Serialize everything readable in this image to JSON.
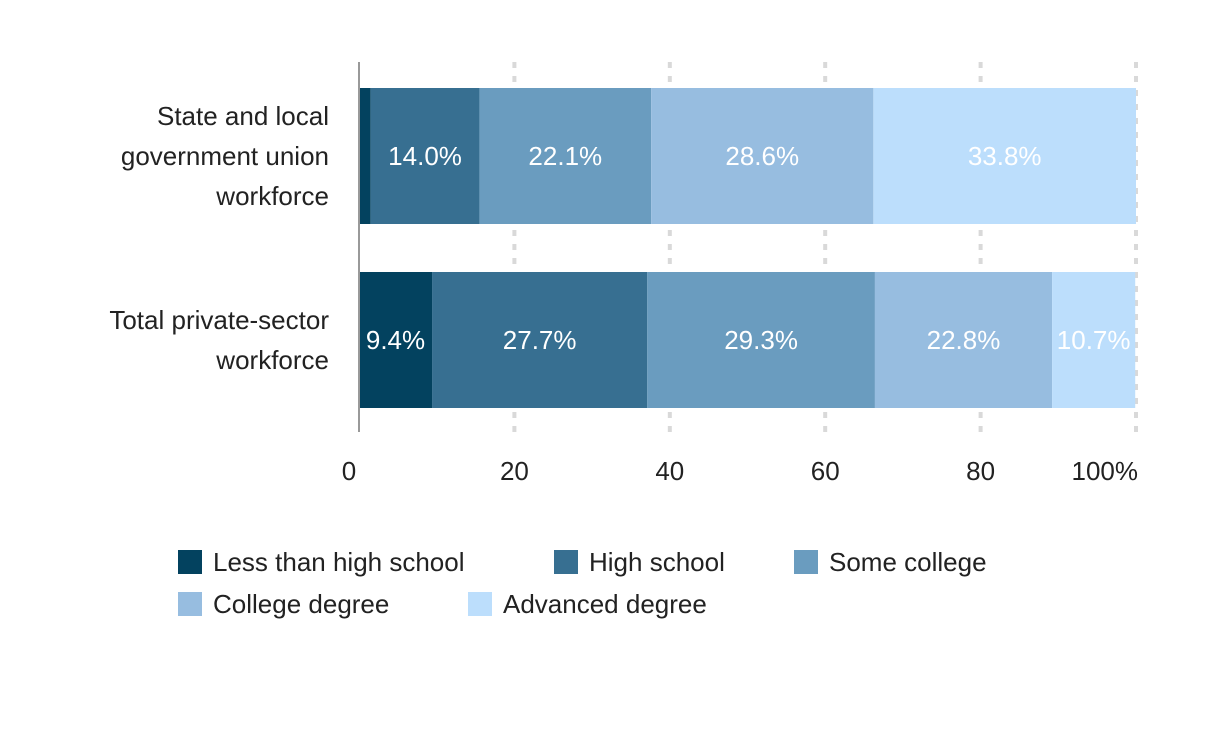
{
  "chart_data": {
    "type": "bar",
    "orientation": "horizontal",
    "stacked": true,
    "categories": [
      "State and local government union workforce",
      "Total private-sector workforce"
    ],
    "category_label_lines": [
      [
        "State and local",
        "government union",
        "workforce"
      ],
      [
        "Total private-sector",
        "workforce"
      ]
    ],
    "series": [
      {
        "name": "Less than high school",
        "values": [
          1.5,
          9.4
        ],
        "labels": [
          "",
          "9.4%"
        ],
        "color": "#03425f"
      },
      {
        "name": "High school",
        "values": [
          14.0,
          27.7
        ],
        "labels": [
          "14.0%",
          "27.7%"
        ],
        "color": "#376f91"
      },
      {
        "name": "Some college",
        "values": [
          22.1,
          29.3
        ],
        "labels": [
          "22.1%",
          "29.3%"
        ],
        "color": "#6a9cbf"
      },
      {
        "name": "College degree",
        "values": [
          28.6,
          22.8
        ],
        "labels": [
          "28.6%",
          "22.8%"
        ],
        "color": "#97bde0"
      },
      {
        "name": "Advanced degree",
        "values": [
          33.8,
          10.7
        ],
        "labels": [
          "33.8%",
          "10.7%"
        ],
        "color": "#bcdefc"
      }
    ],
    "xlim": [
      0,
      100
    ],
    "x_ticks": [
      "0",
      "20",
      "40",
      "60",
      "80",
      "100%"
    ],
    "grid": true,
    "legend_position": "bottom",
    "legend_rows": [
      [
        0,
        1,
        2
      ],
      [
        3,
        4
      ]
    ]
  }
}
